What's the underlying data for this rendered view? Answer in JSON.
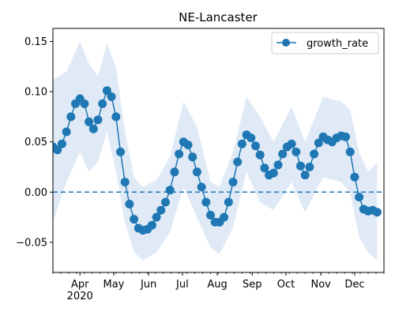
{
  "chart_data": {
    "type": "line",
    "title": "NE-Lancaster",
    "xlabel": "",
    "ylabel": "",
    "x_tick_labels": [
      "Apr\n2020",
      "May",
      "Jun",
      "Jul",
      "Aug",
      "Sep",
      "Oct",
      "Nov",
      "Dec"
    ],
    "y_tick_labels": [
      "0.15",
      "0.10",
      "0.05",
      "0.00",
      "−0.05"
    ],
    "ylim": [
      -0.08,
      0.163
    ],
    "xlim": [
      "2020-03-08",
      "2020-12-27"
    ],
    "y_ticks": [
      0.15,
      0.1,
      0.05,
      0.0,
      -0.05
    ],
    "reference_line": {
      "y": 0.0,
      "style": "dashed"
    },
    "legend": {
      "position": "top-right",
      "entries": [
        "growth_rate"
      ]
    },
    "grid": false,
    "colors": {
      "series": "#1f77b4",
      "band": "#dfeaf6"
    },
    "series": [
      {
        "name": "growth_rate",
        "marker": "circle",
        "points": [
          [
            "2020-03-08",
            0.045
          ],
          [
            "2020-03-12",
            0.042
          ],
          [
            "2020-03-16",
            0.048
          ],
          [
            "2020-03-20",
            0.06
          ],
          [
            "2020-03-24",
            0.075
          ],
          [
            "2020-03-28",
            0.088
          ],
          [
            "2020-04-01",
            0.093
          ],
          [
            "2020-04-05",
            0.088
          ],
          [
            "2020-04-09",
            0.07
          ],
          [
            "2020-04-13",
            0.063
          ],
          [
            "2020-04-17",
            0.072
          ],
          [
            "2020-04-21",
            0.088
          ],
          [
            "2020-04-25",
            0.101
          ],
          [
            "2020-04-29",
            0.095
          ],
          [
            "2020-05-03",
            0.075
          ],
          [
            "2020-05-07",
            0.04
          ],
          [
            "2020-05-11",
            0.01
          ],
          [
            "2020-05-15",
            -0.012
          ],
          [
            "2020-05-19",
            -0.027
          ],
          [
            "2020-05-23",
            -0.036
          ],
          [
            "2020-05-27",
            -0.038
          ],
          [
            "2020-05-31",
            -0.037
          ],
          [
            "2020-06-04",
            -0.033
          ],
          [
            "2020-06-08",
            -0.025
          ],
          [
            "2020-06-12",
            -0.018
          ],
          [
            "2020-06-16",
            -0.01
          ],
          [
            "2020-06-20",
            0.002
          ],
          [
            "2020-06-24",
            0.02
          ],
          [
            "2020-06-28",
            0.038
          ],
          [
            "2020-07-02",
            0.05
          ],
          [
            "2020-07-06",
            0.047
          ],
          [
            "2020-07-10",
            0.035
          ],
          [
            "2020-07-14",
            0.02
          ],
          [
            "2020-07-18",
            0.005
          ],
          [
            "2020-07-22",
            -0.01
          ],
          [
            "2020-07-26",
            -0.023
          ],
          [
            "2020-07-30",
            -0.03
          ],
          [
            "2020-08-03",
            -0.03
          ],
          [
            "2020-08-07",
            -0.025
          ],
          [
            "2020-08-11",
            -0.01
          ],
          [
            "2020-08-15",
            0.01
          ],
          [
            "2020-08-19",
            0.03
          ],
          [
            "2020-08-23",
            0.048
          ],
          [
            "2020-08-27",
            0.057
          ],
          [
            "2020-08-31",
            0.054
          ],
          [
            "2020-09-04",
            0.046
          ],
          [
            "2020-09-08",
            0.037
          ],
          [
            "2020-09-12",
            0.024
          ],
          [
            "2020-09-16",
            0.017
          ],
          [
            "2020-09-20",
            0.019
          ],
          [
            "2020-09-24",
            0.027
          ],
          [
            "2020-09-28",
            0.038
          ],
          [
            "2020-10-02",
            0.045
          ],
          [
            "2020-10-06",
            0.048
          ],
          [
            "2020-10-10",
            0.04
          ],
          [
            "2020-10-14",
            0.026
          ],
          [
            "2020-10-18",
            0.017
          ],
          [
            "2020-10-22",
            0.025
          ],
          [
            "2020-10-26",
            0.038
          ],
          [
            "2020-10-30",
            0.049
          ],
          [
            "2020-11-03",
            0.055
          ],
          [
            "2020-11-07",
            0.052
          ],
          [
            "2020-11-11",
            0.05
          ],
          [
            "2020-11-15",
            0.054
          ],
          [
            "2020-11-19",
            0.056
          ],
          [
            "2020-11-23",
            0.055
          ],
          [
            "2020-11-27",
            0.04
          ],
          [
            "2020-12-01",
            0.015
          ],
          [
            "2020-12-05",
            -0.005
          ],
          [
            "2020-12-09",
            -0.017
          ],
          [
            "2020-12-13",
            -0.019
          ],
          [
            "2020-12-17",
            -0.018
          ],
          [
            "2020-12-21",
            -0.02
          ]
        ],
        "band": [
          [
            "2020-03-08",
            0.112,
            -0.03
          ],
          [
            "2020-03-20",
            0.12,
            0.01
          ],
          [
            "2020-04-01",
            0.15,
            0.04
          ],
          [
            "2020-04-09",
            0.128,
            0.02
          ],
          [
            "2020-04-17",
            0.115,
            0.03
          ],
          [
            "2020-04-25",
            0.148,
            0.06
          ],
          [
            "2020-05-03",
            0.125,
            0.02
          ],
          [
            "2020-05-11",
            0.06,
            -0.03
          ],
          [
            "2020-05-19",
            0.015,
            -0.06
          ],
          [
            "2020-05-27",
            0.005,
            -0.068
          ],
          [
            "2020-06-08",
            0.012,
            -0.06
          ],
          [
            "2020-06-20",
            0.035,
            -0.04
          ],
          [
            "2020-07-02",
            0.09,
            0.005
          ],
          [
            "2020-07-14",
            0.065,
            -0.025
          ],
          [
            "2020-07-26",
            0.01,
            -0.055
          ],
          [
            "2020-08-03",
            0.005,
            -0.062
          ],
          [
            "2020-08-15",
            0.04,
            -0.035
          ],
          [
            "2020-08-27",
            0.095,
            0.02
          ],
          [
            "2020-09-08",
            0.075,
            -0.01
          ],
          [
            "2020-09-20",
            0.05,
            -0.018
          ],
          [
            "2020-10-06",
            0.085,
            0.01
          ],
          [
            "2020-10-18",
            0.05,
            -0.02
          ],
          [
            "2020-11-03",
            0.095,
            0.015
          ],
          [
            "2020-11-19",
            0.09,
            0.01
          ],
          [
            "2020-11-27",
            0.082,
            0.0
          ],
          [
            "2020-12-05",
            0.04,
            -0.045
          ],
          [
            "2020-12-13",
            0.02,
            -0.06
          ],
          [
            "2020-12-21",
            0.03,
            -0.068
          ]
        ]
      }
    ]
  }
}
